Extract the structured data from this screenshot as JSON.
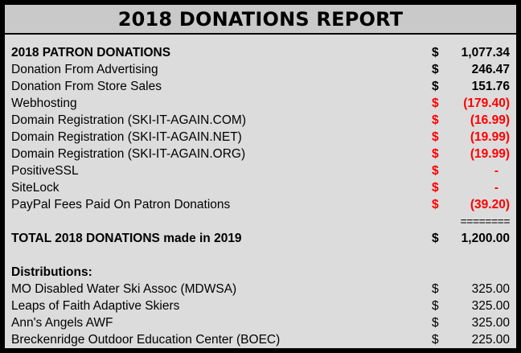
{
  "title": "2018 DONATIONS REPORT",
  "rows": [
    {
      "label": "2018 PATRON DONATIONS",
      "cur": "$",
      "amt": "1,077.34"
    },
    {
      "label": "Donation From Advertising",
      "cur": "$",
      "amt": "246.47"
    },
    {
      "label": "Donation From Store Sales",
      "cur": "$",
      "amt": "151.76"
    },
    {
      "label": "Webhosting",
      "cur": "$",
      "amt": "(179.40)"
    },
    {
      "label": "Domain Registration (SKI-IT-AGAIN.COM)",
      "cur": "$",
      "amt": "(16.99)"
    },
    {
      "label": "Domain Registration (SKI-IT-AGAIN.NET)",
      "cur": "$",
      "amt": "(19.99)"
    },
    {
      "label": "Domain Registration (SKI-IT-AGAIN.ORG)",
      "cur": "$",
      "amt": "(19.99)"
    },
    {
      "label": "PositiveSSL",
      "cur": "$",
      "amt": "-"
    },
    {
      "label": "SiteLock",
      "cur": "$",
      "amt": "-"
    },
    {
      "label": "PayPal Fees Paid On Patron Donations",
      "cur": "$",
      "amt": "(39.20)"
    }
  ],
  "separator": "========",
  "total": {
    "label": "TOTAL 2018 DONATIONS made in 2019",
    "cur": "$",
    "amt": "1,200.00"
  },
  "distributions_heading": "Distributions:",
  "distributions": [
    {
      "label": "MO Disabled Water Ski Assoc (MDWSA)",
      "cur": "$",
      "amt": "325.00"
    },
    {
      "label": "Leaps of Faith Adaptive Skiers",
      "cur": "$",
      "amt": "325.00"
    },
    {
      "label": "Ann's Angels AWF",
      "cur": "$",
      "amt": "325.00"
    },
    {
      "label": "Breckenridge Outdoor Education Center (BOEC)",
      "cur": "$",
      "amt": "225.00"
    }
  ],
  "colors": {
    "negative": "#ff0000",
    "background": "#dcdcdc",
    "title_bar": "#c9c9c9"
  }
}
